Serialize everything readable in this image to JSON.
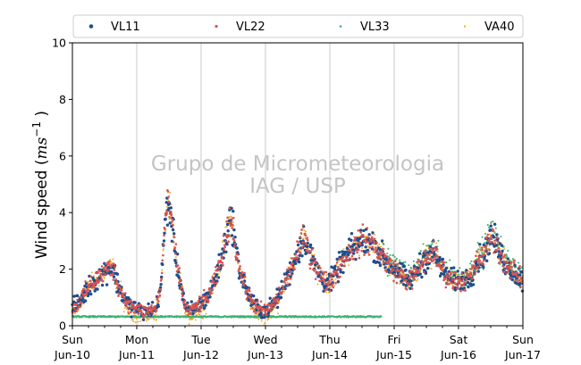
{
  "chart_data": {
    "type": "scatter",
    "ylabel": {
      "main": "Wind speed (",
      "ital": "ms",
      "sup": "−1",
      "close": " )"
    },
    "ylim": [
      0,
      10
    ],
    "yticks": [
      "0",
      "2",
      "4",
      "6",
      "8",
      "10"
    ],
    "xlim_days": [
      "Jun-10",
      "Jun-17"
    ],
    "xticks": [
      {
        "day": "Sun",
        "date": "Jun-10"
      },
      {
        "day": "Mon",
        "date": "Jun-11"
      },
      {
        "day": "Tue",
        "date": "Jun-12"
      },
      {
        "day": "Wed",
        "date": "Jun-13"
      },
      {
        "day": "Thu",
        "date": "Jun-14"
      },
      {
        "day": "Fri",
        "date": "Jun-15"
      },
      {
        "day": "Sat",
        "date": "Jun-16"
      },
      {
        "day": "Sun",
        "date": "Jun-17"
      }
    ],
    "grid": "vertical at day ticks",
    "legend_position": "top, above plot, 4 columns",
    "watermark": [
      "Grupo de Micrometeorologia",
      "IAG / USP"
    ],
    "series": [
      {
        "name": "VL11",
        "color": "#1f4e8c"
      },
      {
        "name": "VL22",
        "color": "#d9534f"
      },
      {
        "name": "VL33",
        "color": "#3cb371"
      },
      {
        "name": "VA40",
        "color": "#f5a623"
      }
    ],
    "profile": {
      "x_day": [
        0,
        0.12,
        0.3,
        0.45,
        0.55,
        0.62,
        0.7,
        0.8,
        0.9,
        1.0,
        1.1,
        1.2,
        1.3,
        1.38,
        1.45,
        1.5,
        1.55,
        1.62,
        1.7,
        1.75,
        1.8,
        1.9,
        2.0,
        2.1,
        2.2,
        2.3,
        2.38,
        2.45,
        2.5,
        2.55,
        2.62,
        2.7,
        2.8,
        2.9,
        3.0,
        3.1,
        3.2,
        3.3,
        3.4,
        3.5,
        3.6,
        3.7,
        3.8,
        3.9,
        4.0,
        4.1,
        4.2,
        4.3,
        4.4,
        4.5,
        4.6,
        4.7,
        4.8,
        4.9,
        5.0,
        5.1,
        5.2,
        5.3,
        5.4,
        5.5,
        5.6,
        5.7,
        5.8,
        5.9,
        6.0,
        6.1,
        6.2,
        6.3,
        6.4,
        6.5,
        6.6,
        6.7,
        6.8,
        6.9,
        7.0
      ],
      "speed": [
        0.6,
        0.9,
        1.5,
        1.8,
        2.0,
        2.1,
        1.5,
        1.0,
        0.7,
        0.6,
        0.5,
        0.55,
        0.6,
        1.5,
        4.0,
        4.3,
        3.5,
        2.2,
        1.3,
        0.7,
        0.5,
        0.6,
        0.8,
        1.0,
        1.5,
        2.2,
        3.0,
        3.8,
        3.5,
        2.5,
        1.8,
        1.3,
        0.8,
        0.6,
        0.5,
        0.7,
        1.0,
        1.5,
        2.0,
        2.6,
        3.1,
        2.5,
        2.0,
        1.6,
        1.5,
        1.9,
        2.3,
        2.6,
        2.8,
        3.0,
        3.0,
        2.8,
        2.5,
        2.2,
        2.0,
        1.8,
        1.6,
        1.7,
        2.1,
        2.4,
        2.6,
        2.2,
        1.8,
        1.6,
        1.6,
        1.6,
        1.8,
        2.3,
        2.5,
        3.2,
        2.8,
        2.3,
        2.0,
        1.8,
        1.6
      ]
    },
    "vl33_flat": {
      "until_day": 4.8,
      "speed": 0.32
    }
  }
}
